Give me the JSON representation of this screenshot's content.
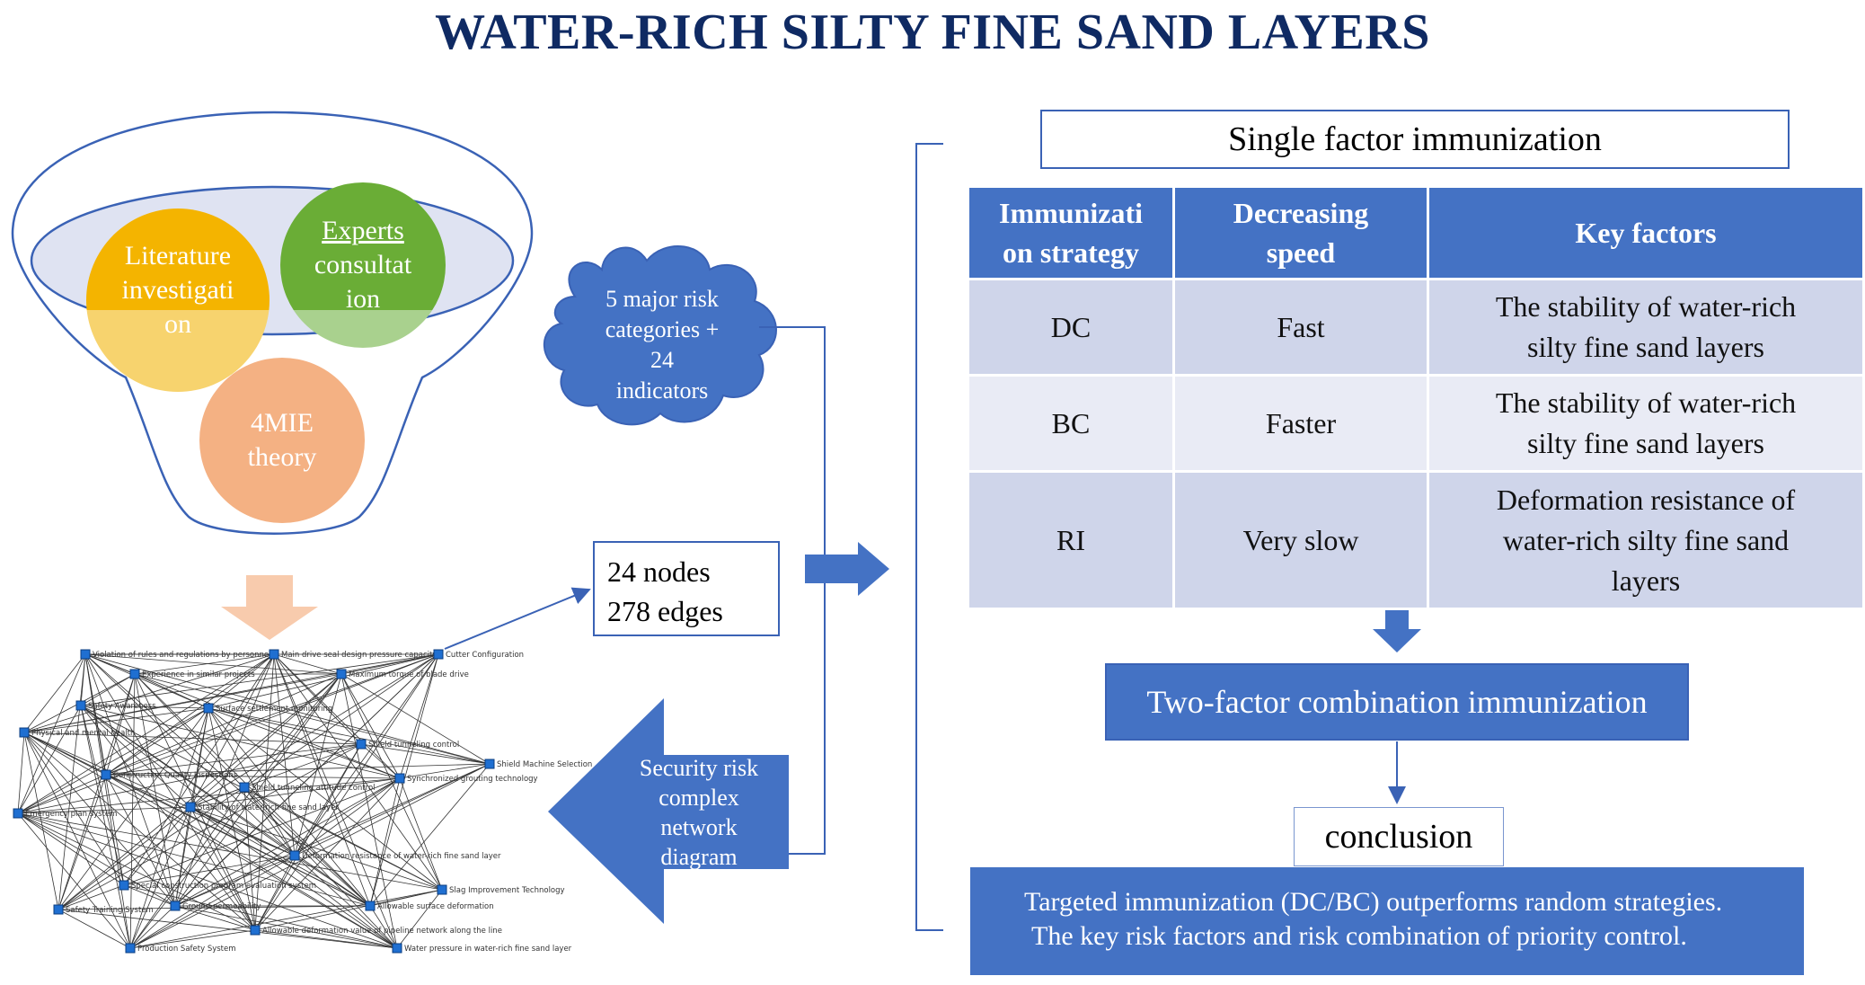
{
  "title": "WATER-RICH SILTY FINE SAND LAYERS",
  "funnel": {
    "literature": [
      "Literature",
      "investigati",
      "on"
    ],
    "experts": [
      "Experts",
      "consultat",
      "ion"
    ],
    "theory": [
      "4MIE",
      "theory"
    ]
  },
  "cloud": [
    "5 major risk",
    "categories +",
    "24",
    "indicators"
  ],
  "network_stats": [
    "24 nodes",
    "278 edges"
  ],
  "security_arrow": [
    "Security risk",
    "complex",
    "network",
    "diagram"
  ],
  "single_factor": "Single factor immunization",
  "table": {
    "headers": [
      [
        "Immunizati",
        "on strategy"
      ],
      [
        "Decreasing",
        "speed"
      ],
      [
        "Key factors"
      ]
    ],
    "rows": [
      {
        "strategy": "DC",
        "speed": "Fast",
        "factor": [
          "The stability of water-rich",
          "silty fine sand layers"
        ]
      },
      {
        "strategy": "BC",
        "speed": "Faster",
        "factor": [
          "The stability of water-rich",
          "silty fine sand layers"
        ]
      },
      {
        "strategy": "RI",
        "speed": "Very slow",
        "factor": [
          "Deformation resistance of",
          "water-rich silty fine sand",
          "layers"
        ]
      }
    ]
  },
  "two_factor": "Two-factor combination immunization",
  "conclusion_label": "conclusion",
  "conclusion_items": [
    "Targeted immunization (DC/BC) outperforms random strategies.",
    "The key risk factors and risk combination of priority control."
  ],
  "network_nodes": [
    "Violation of rules and regulations by personnel",
    "Main drive seal design pressure capacity",
    "Cutter Configuration",
    "Experience in similar projects",
    "Maximum torque of blade drive",
    "Safety Awareness",
    "Surface settlement monitoring",
    "Physical and mental health",
    "Shield tunneling control",
    "Shield Machine Selection",
    "Construction Quality Inspections",
    "Synchronized grouting technology",
    "Shield tunneling attitude control",
    "Stability of water-rich fine sand layer",
    "Emergency plan system",
    "Deformation resistance of water-rich fine sand layer",
    "Special construction program evaluation system",
    "Slag Improvement Technology",
    "Safety Training System",
    "Ground permeability",
    "Allowable surface deformation",
    "Allowable deformation value of pipeline network along the line",
    "Production Safety System",
    "Water pressure in water-rich fine sand layer"
  ],
  "colors": {
    "title": "#0f2a63",
    "blue": "#4472c4",
    "outline": "#3a62b5",
    "literature": "#f4b400",
    "experts": "#6aad36",
    "theory": "#f4b183",
    "down_arrow": "#f8cbad"
  }
}
